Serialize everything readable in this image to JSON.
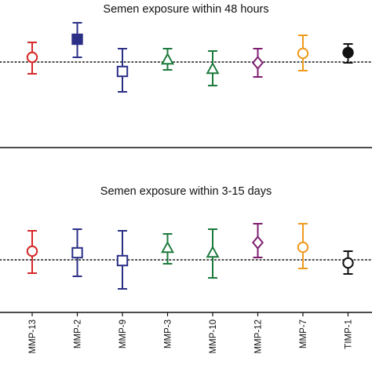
{
  "chart_data": [
    {
      "type": "scatter",
      "subtype": "point-with-error-bars",
      "title": "Semen exposure within 48 hours",
      "reference_line": {
        "y": 0,
        "style": "dotted"
      },
      "categories": [
        "MMP-13",
        "MMP-2",
        "MMP-9",
        "MMP-3",
        "MMP-10",
        "MMP-12",
        "MMP-7",
        "TIMP-1"
      ],
      "points": [
        {
          "category": "MMP-13",
          "value": 0.3,
          "lower": -0.75,
          "upper": 1.25,
          "marker": "circle",
          "filled": false,
          "color": "#d42a2a"
        },
        {
          "category": "MMP-2",
          "value": 1.45,
          "lower": 0.3,
          "upper": 2.5,
          "marker": "square",
          "filled": true,
          "color": "#2b2f86"
        },
        {
          "category": "MMP-9",
          "value": -0.6,
          "lower": -1.9,
          "upper": 0.85,
          "marker": "square",
          "filled": false,
          "color": "#2b2f86"
        },
        {
          "category": "MMP-3",
          "value": 0.15,
          "lower": -0.5,
          "upper": 0.85,
          "marker": "triangle",
          "filled": false,
          "color": "#1c7a3b"
        },
        {
          "category": "MMP-10",
          "value": -0.45,
          "lower": -1.5,
          "upper": 0.7,
          "marker": "triangle",
          "filled": false,
          "color": "#1c7a3b"
        },
        {
          "category": "MMP-12",
          "value": -0.05,
          "lower": -0.95,
          "upper": 0.85,
          "marker": "diamond",
          "filled": false,
          "color": "#7d1e6f"
        },
        {
          "category": "MMP-7",
          "value": 0.55,
          "lower": -0.55,
          "upper": 1.7,
          "marker": "circle",
          "filled": false,
          "color": "#ef9a1e"
        },
        {
          "category": "TIMP-1",
          "value": 0.6,
          "lower": -0.05,
          "upper": 1.15,
          "marker": "circle",
          "filled": true,
          "color": "#111111"
        }
      ],
      "ylim": [
        -5.2,
        3.6
      ]
    },
    {
      "type": "scatter",
      "subtype": "point-with-error-bars",
      "title": "Semen exposure within 3-15 days",
      "reference_line": {
        "y": 0,
        "style": "dotted"
      },
      "categories": [
        "MMP-13",
        "MMP-2",
        "MMP-9",
        "MMP-3",
        "MMP-10",
        "MMP-12",
        "MMP-7",
        "TIMP-1"
      ],
      "points": [
        {
          "category": "MMP-13",
          "value": 0.55,
          "lower": -0.85,
          "upper": 1.85,
          "marker": "circle",
          "filled": false,
          "color": "#d42a2a"
        },
        {
          "category": "MMP-2",
          "value": 0.45,
          "lower": -1.05,
          "upper": 1.95,
          "marker": "square",
          "filled": false,
          "color": "#2b2f86"
        },
        {
          "category": "MMP-9",
          "value": -0.05,
          "lower": -1.85,
          "upper": 1.85,
          "marker": "square",
          "filled": false,
          "color": "#2b2f86"
        },
        {
          "category": "MMP-3",
          "value": 0.75,
          "lower": -0.25,
          "upper": 1.65,
          "marker": "triangle",
          "filled": false,
          "color": "#1c7a3b"
        },
        {
          "category": "MMP-10",
          "value": 0.45,
          "lower": -1.15,
          "upper": 1.95,
          "marker": "triangle",
          "filled": false,
          "color": "#1c7a3b"
        },
        {
          "category": "MMP-12",
          "value": 1.1,
          "lower": 0.15,
          "upper": 2.3,
          "marker": "diamond",
          "filled": false,
          "color": "#7d1e6f"
        },
        {
          "category": "MMP-7",
          "value": 0.8,
          "lower": -0.55,
          "upper": 2.3,
          "marker": "circle",
          "filled": false,
          "color": "#ef9a1e"
        },
        {
          "category": "TIMP-1",
          "value": -0.2,
          "lower": -0.9,
          "upper": 0.55,
          "marker": "circle",
          "filled": false,
          "color": "#111111"
        }
      ],
      "ylim": [
        -3.6,
        4.8
      ]
    }
  ]
}
